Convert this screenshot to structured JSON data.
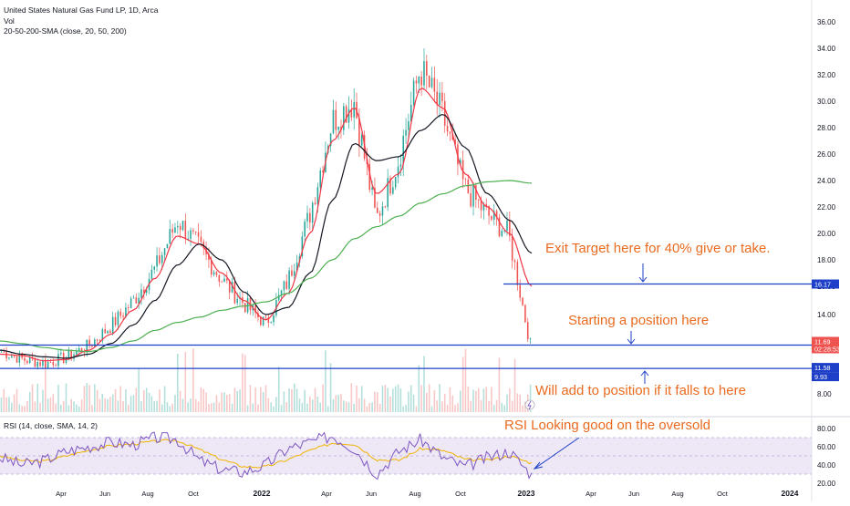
{
  "legend": {
    "symbol": "United States Natural Gas Fund LP, 1D, Arca",
    "volume": "Vol",
    "ma": "20-50-200-SMA (close, 20, 50, 200)",
    "rsi": "RSI (14, close, SMA, 14, 2)"
  },
  "annotations": {
    "exit": "Exit Target here for 40% give or take.",
    "start": "Starting a position here",
    "add": "Will add to position if it falls to here",
    "rsi": "RSI Looking good on the oversold"
  },
  "price_labels": {
    "target": "16.17",
    "current": "11.69",
    "countdown": "02:28:53",
    "add_level": "11.58",
    "volume": "9.93"
  },
  "colors": {
    "up": "#26a69a",
    "down": "#ef5350",
    "ma20": "#f23645",
    "ma50": "#131722",
    "ma200": "#4caf50",
    "level_line": "#1e40c8",
    "rsi_line": "#7e57c2",
    "rsi_ma": "#f0b400",
    "annotation": "#ea6a1f",
    "rsi_band": "#ede7f6"
  },
  "chart_data": [
    {
      "type": "candlestick",
      "title": "United States Natural Gas Fund LP, 1D, Arca",
      "x_tick_labels": [
        "Apr",
        "Jun",
        "Aug",
        "Oct",
        "2022",
        "Apr",
        "Jun",
        "Aug",
        "Oct",
        "2023",
        "Apr",
        "Jun",
        "Aug",
        "Oct",
        "2024"
      ],
      "y_tick_labels": [
        "8.00",
        "14.00",
        "16.00",
        "18.00",
        "20.00",
        "22.00",
        "24.00",
        "26.00",
        "28.00",
        "30.00",
        "32.00",
        "34.00",
        "36.00"
      ],
      "ylim": [
        7.5,
        36.5
      ],
      "dates": [
        "2021-01",
        "2021-02",
        "2021-03",
        "2021-04",
        "2021-05",
        "2021-06",
        "2021-07",
        "2021-08",
        "2021-09",
        "2021-10",
        "2021-11",
        "2021-12",
        "2022-01",
        "2022-02",
        "2022-03",
        "2022-04",
        "2022-05",
        "2022-06",
        "2022-07",
        "2022-08",
        "2022-09",
        "2022-10",
        "2022-11",
        "2022-12",
        "2023-01"
      ],
      "close": [
        11.2,
        10.6,
        10.3,
        10.8,
        11.7,
        13.2,
        15.0,
        17.4,
        21.0,
        18.9,
        16.5,
        14.8,
        13.3,
        16.4,
        21.5,
        28.5,
        30.0,
        21.0,
        25.5,
        32.5,
        29.0,
        23.5,
        21.5,
        20.0,
        11.7
      ],
      "series": [
        {
          "name": "SMA 20",
          "values": [
            11.0,
            10.9,
            10.5,
            10.6,
            11.3,
            12.5,
            14.3,
            16.6,
            19.8,
            19.2,
            17.0,
            15.0,
            13.6,
            15.5,
            20.0,
            27.0,
            29.5,
            23.0,
            24.5,
            31.0,
            29.5,
            24.5,
            22.0,
            20.0,
            16.0
          ]
        },
        {
          "name": "SMA 50",
          "values": [
            11.3,
            11.0,
            10.8,
            10.7,
            11.0,
            11.8,
            13.2,
            15.0,
            17.6,
            19.2,
            18.0,
            15.6,
            14.0,
            14.5,
            17.0,
            22.5,
            26.8,
            25.5,
            25.8,
            27.8,
            29.0,
            26.5,
            23.0,
            21.0,
            18.5
          ]
        },
        {
          "name": "SMA 200",
          "values": [
            12.0,
            11.8,
            11.5,
            11.3,
            11.2,
            11.5,
            12.0,
            12.8,
            13.4,
            13.8,
            14.3,
            14.6,
            14.9,
            15.5,
            16.6,
            18.0,
            19.6,
            20.5,
            21.3,
            22.3,
            23.0,
            23.6,
            23.9,
            24.0,
            23.8
          ]
        }
      ],
      "levels": [
        16.17,
        11.69,
        11.58
      ]
    },
    {
      "type": "line",
      "title": "RSI (14, close, SMA, 14, 2)",
      "y_tick_labels": [
        "20.00",
        "40.00",
        "60.00",
        "80.00"
      ],
      "ylim": [
        15,
        88
      ],
      "bands": [
        30,
        70
      ],
      "series": [
        {
          "name": "RSI",
          "values": [
            48,
            40,
            45,
            55,
            60,
            65,
            62,
            70,
            68,
            45,
            35,
            32,
            40,
            58,
            65,
            72,
            58,
            30,
            55,
            68,
            48,
            38,
            48,
            55,
            29
          ]
        },
        {
          "name": "RSI SMA",
          "values": [
            50,
            45,
            44,
            50,
            56,
            61,
            63,
            66,
            67,
            57,
            46,
            38,
            38,
            46,
            56,
            64,
            63,
            46,
            45,
            58,
            56,
            46,
            45,
            50,
            42
          ]
        }
      ]
    }
  ]
}
